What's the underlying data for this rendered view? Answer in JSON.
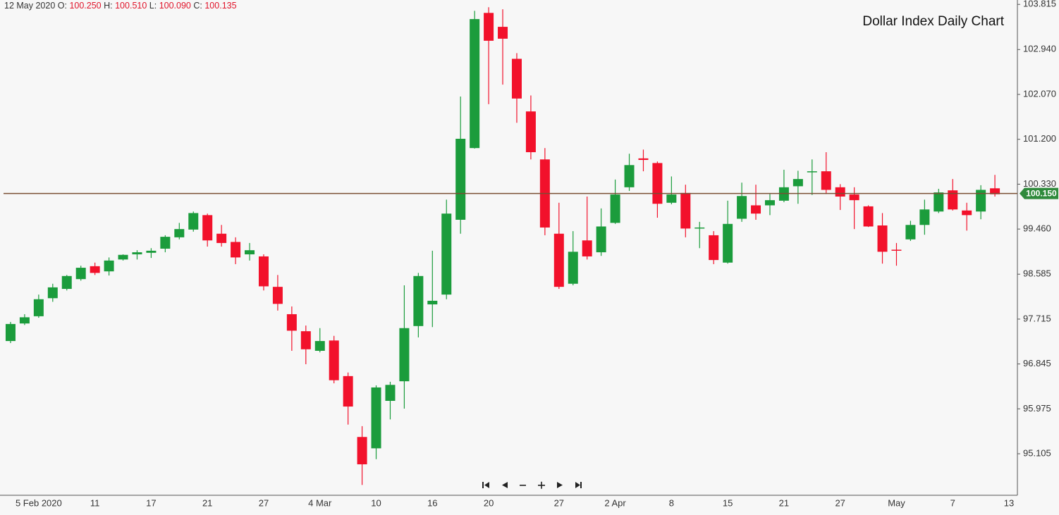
{
  "header": {
    "date": "12 May 2020",
    "items": [
      {
        "label": "O:",
        "value": "100.250"
      },
      {
        "label": "H:",
        "value": "100.510"
      },
      {
        "label": "L:",
        "value": "100.090"
      },
      {
        "label": "C:",
        "value": "100.135"
      }
    ]
  },
  "chart_data": {
    "type": "candlestick",
    "title": "Dollar Index Daily Chart",
    "categories": [
      null,
      null,
      "5 Feb 2020",
      null,
      null,
      null,
      "11",
      null,
      null,
      null,
      "17",
      null,
      null,
      null,
      "21",
      null,
      null,
      null,
      "27",
      null,
      null,
      null,
      "4 Mar",
      null,
      null,
      null,
      "10",
      null,
      null,
      null,
      "16",
      null,
      null,
      null,
      "20",
      null,
      null,
      null,
      null,
      "27",
      null,
      null,
      null,
      "2 Apr",
      null,
      null,
      null,
      "8",
      null,
      null,
      null,
      "15",
      null,
      null,
      null,
      "21",
      null,
      null,
      null,
      "27",
      null,
      null,
      null,
      "May",
      null,
      null,
      null,
      "7",
      null,
      null,
      null,
      "13"
    ],
    "open": [
      97.29,
      97.63,
      97.77,
      98.12,
      98.3,
      98.49,
      98.74,
      98.64,
      98.87,
      98.97,
      99.0,
      99.08,
      99.3,
      99.45,
      99.73,
      99.37,
      99.21,
      98.97,
      98.93,
      98.34,
      97.81,
      97.48,
      97.1,
      97.3,
      96.61,
      95.43,
      95.21,
      96.13,
      96.51,
      97.58,
      98.0,
      98.19,
      99.64,
      101.03,
      103.65,
      103.38,
      102.76,
      101.74,
      100.81,
      99.37,
      98.4,
      99.24,
      99.01,
      99.58,
      100.27,
      100.83,
      100.74,
      99.97,
      100.16,
      99.47,
      99.34,
      98.81,
      99.66,
      99.92,
      99.92,
      100.01,
      100.29,
      100.57,
      100.58,
      100.27,
      100.13,
      99.9,
      99.53,
      99.06,
      99.26,
      99.54,
      99.8,
      100.21,
      99.82,
      99.8,
      100.25,
      null
    ],
    "high": [
      97.66,
      97.81,
      98.19,
      98.4,
      98.57,
      98.75,
      98.81,
      98.91,
      98.97,
      99.05,
      99.09,
      99.34,
      99.58,
      99.8,
      99.76,
      99.54,
      99.3,
      99.19,
      98.97,
      98.57,
      97.96,
      97.59,
      97.54,
      97.39,
      96.68,
      95.64,
      96.43,
      96.5,
      98.37,
      98.61,
      99.04,
      100.03,
      102.03,
      103.69,
      103.76,
      103.72,
      102.87,
      102.05,
      101.03,
      99.97,
      99.42,
      100.09,
      99.86,
      100.42,
      100.92,
      101.0,
      100.77,
      100.48,
      100.32,
      99.6,
      99.42,
      100.01,
      100.36,
      100.32,
      100.14,
      100.61,
      100.59,
      100.81,
      100.95,
      100.33,
      100.27,
      99.92,
      99.77,
      99.19,
      99.62,
      100.03,
      100.24,
      100.43,
      99.97,
      100.31,
      100.51,
      null
    ],
    "low": [
      97.25,
      97.6,
      97.74,
      98.05,
      98.27,
      98.46,
      98.57,
      98.56,
      98.85,
      98.87,
      98.9,
      99.01,
      99.26,
      99.41,
      99.12,
      99.12,
      98.78,
      98.85,
      98.27,
      97.88,
      97.1,
      96.84,
      97.07,
      96.47,
      95.67,
      94.5,
      95.0,
      95.77,
      95.98,
      97.36,
      97.56,
      98.1,
      99.37,
      101.02,
      101.88,
      102.26,
      101.52,
      100.81,
      99.34,
      98.3,
      98.37,
      98.87,
      98.94,
      99.56,
      100.2,
      100.58,
      99.68,
      99.94,
      99.3,
      99.09,
      98.78,
      98.79,
      99.6,
      99.64,
      99.73,
      99.98,
      99.95,
      100.12,
      100.14,
      99.83,
      99.46,
      99.5,
      98.79,
      98.75,
      99.23,
      99.35,
      99.77,
      99.82,
      99.43,
      99.65,
      100.09,
      null
    ],
    "close": [
      97.62,
      97.75,
      98.1,
      98.33,
      98.55,
      98.71,
      98.61,
      98.85,
      98.96,
      99.01,
      99.04,
      99.31,
      99.46,
      99.77,
      99.24,
      99.19,
      98.91,
      99.05,
      98.35,
      98.01,
      97.49,
      97.13,
      97.29,
      96.53,
      96.02,
      94.9,
      96.39,
      96.44,
      97.54,
      98.55,
      98.07,
      99.76,
      101.21,
      103.53,
      103.11,
      103.15,
      101.99,
      100.95,
      99.49,
      98.34,
      99.02,
      98.93,
      99.51,
      100.13,
      100.7,
      100.8,
      99.95,
      100.13,
      99.47,
      99.49,
      98.86,
      99.56,
      100.1,
      99.76,
      100.02,
      100.27,
      100.43,
      100.58,
      100.22,
      100.09,
      100.02,
      99.51,
      99.02,
      99.05,
      99.54,
      99.84,
      100.17,
      99.84,
      99.73,
      100.22,
      100.135,
      null
    ],
    "up_color": "#1b9c3c",
    "down_color": "#f2112b",
    "price_line": {
      "value": 100.15,
      "label": "100.150",
      "color": "#7a4e33",
      "tag_color": "#2f8a3c"
    },
    "ylim": [
      94.3,
      103.9
    ],
    "yticks": [
      95.105,
      95.975,
      96.845,
      97.715,
      98.585,
      {
        "value": 99.46,
        "label": "99.460"
      },
      {
        "value": 100.33,
        "label": "100.330"
      },
      {
        "value": 101.2,
        "label": "101.200"
      },
      {
        "value": 102.07,
        "label": "102.070"
      },
      {
        "value": 102.94,
        "label": "102.940"
      },
      103.815
    ],
    "grid": false
  }
}
